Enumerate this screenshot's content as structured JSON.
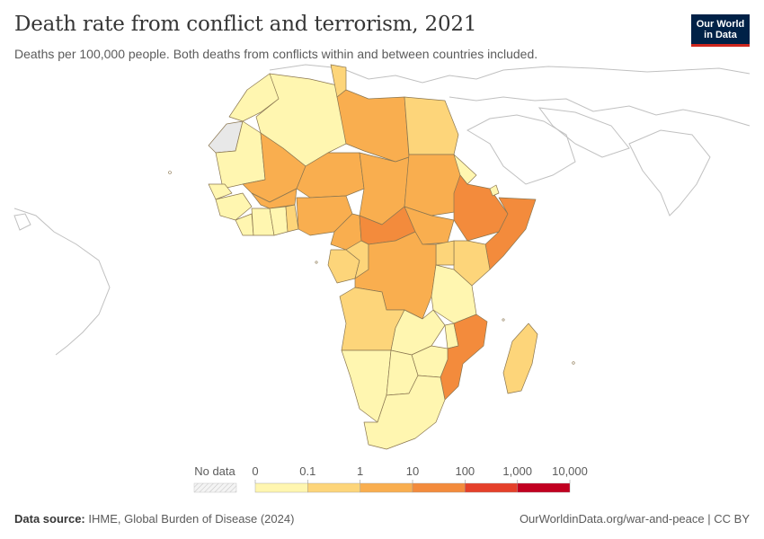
{
  "chart": {
    "title": "Death rate from conflict and terrorism, 2021",
    "subtitle": "Deaths per 100,000 people. Both deaths from conflicts within and between countries included."
  },
  "logo": {
    "line1": "Our World",
    "line2": "in Data"
  },
  "legend": {
    "no_data_label": "No data",
    "ticks": [
      "0",
      "0.1",
      "1",
      "10",
      "100",
      "1,000",
      "10,000"
    ],
    "colors": [
      "#fff6b0",
      "#fdd57a",
      "#f9ae4f",
      "#f38b3c",
      "#e5402a",
      "#c10020"
    ],
    "no_data_color": "#e8e8e8"
  },
  "footer": {
    "source_label": "Data source:",
    "source_text": "IHME, Global Burden of Disease (2024)",
    "link_text": "OurWorldinData.org/war-and-peace",
    "license": "CC BY"
  },
  "colors": {
    "level_0": "#fff6b0",
    "level_1": "#fdd57a",
    "level_2": "#f9ae4f",
    "level_3": "#f38b3c",
    "outline": "#c0c0c0",
    "border": "#8a7650"
  }
}
